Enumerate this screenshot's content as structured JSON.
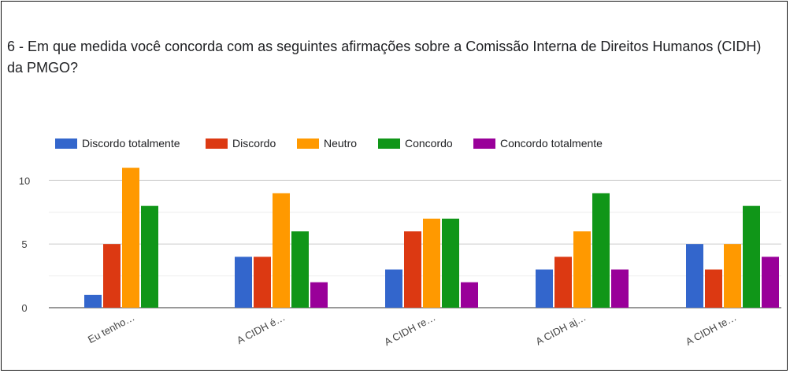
{
  "chart_data": {
    "type": "bar",
    "title": "6 -  Em que medida você concorda com as seguintes afirmações sobre a Comissão Interna de Direitos Humanos (CIDH) da PMGO?",
    "categories": [
      "Eu tenho…",
      "A CIDH é…",
      "A CIDH re…",
      "A CIDH aj…",
      "A CIDH te…"
    ],
    "series": [
      {
        "name": "Discordo totalmente",
        "color": "#3366cc",
        "values": [
          1,
          4,
          3,
          3,
          5
        ]
      },
      {
        "name": "Discordo",
        "color": "#dc3912",
        "values": [
          5,
          4,
          6,
          4,
          3
        ]
      },
      {
        "name": "Neutro",
        "color": "#ff9900",
        "values": [
          11,
          9,
          7,
          6,
          5
        ]
      },
      {
        "name": "Concordo",
        "color": "#109618",
        "values": [
          8,
          6,
          7,
          9,
          8
        ]
      },
      {
        "name": "Concordo totalmente",
        "color": "#990099",
        "values": [
          0,
          2,
          2,
          3,
          4
        ]
      }
    ],
    "yticks": [
      "0",
      "5",
      "10"
    ],
    "ylim": [
      0,
      12
    ],
    "grid": true,
    "legend": "top"
  }
}
